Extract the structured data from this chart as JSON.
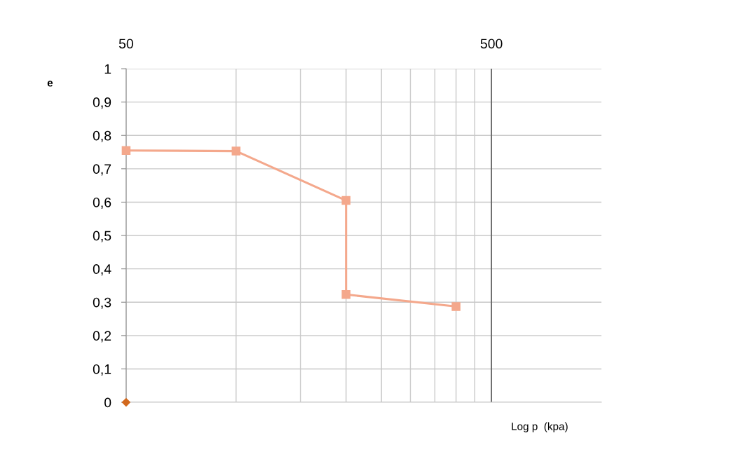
{
  "chart_data": {
    "type": "line",
    "xlabel": "Log p  (kpa)",
    "ylabel": "e",
    "log": "x",
    "xlim": [
      50,
      1000
    ],
    "xticks": [
      50,
      {
        "value": 100,
        "label": null
      },
      {
        "value": 150,
        "label": null
      },
      {
        "value": 200,
        "label": null
      },
      {
        "value": 250,
        "label": null
      },
      {
        "value": 300,
        "label": null
      },
      {
        "value": 350,
        "label": null
      },
      {
        "value": 400,
        "label": null
      },
      {
        "value": 450,
        "label": null
      },
      500
    ],
    "ylim": [
      0,
      1
    ],
    "yticks": [
      0,
      {
        "value": 0.1,
        "label": "0,1"
      },
      {
        "value": 0.2,
        "label": "0,2"
      },
      {
        "value": 0.3,
        "label": "0,3"
      },
      {
        "value": 0.4,
        "label": "0,4"
      },
      {
        "value": 0.5,
        "label": "0,5"
      },
      {
        "value": 0.6,
        "label": "0,6"
      },
      {
        "value": 0.7,
        "label": "0,7"
      },
      {
        "value": 0.8,
        "label": "0,8"
      },
      {
        "value": 0.9,
        "label": "0,9"
      },
      1
    ],
    "grid": true,
    "legend": false,
    "ref_lines": [
      {
        "axis": "x",
        "value": 500,
        "color": "#606060"
      }
    ],
    "series": [
      {
        "color": "#f4a88c",
        "marker": "square",
        "x": [
          50,
          100,
          200,
          200,
          400
        ],
        "values": [
          0.755,
          0.753,
          0.605,
          0.323,
          0.287
        ]
      },
      {
        "type": "scatter",
        "color": "#d2691e",
        "marker": "diamond",
        "x": [
          50
        ],
        "values": [
          0
        ]
      }
    ]
  }
}
